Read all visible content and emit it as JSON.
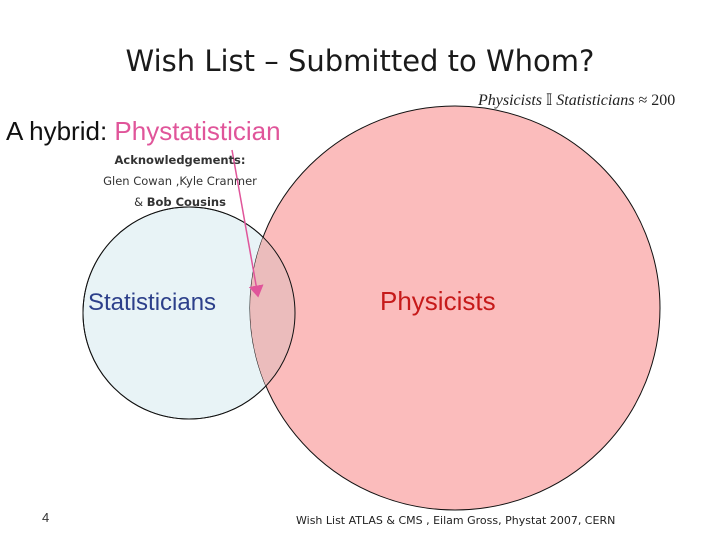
{
  "slide": {
    "title": "Wish List – Submitted to Whom?",
    "ratio": {
      "left": "Physicists",
      "symbol": "𝕀",
      "right": "Statisticians",
      "approx": "≈ 200"
    },
    "hybrid_prefix": "A hybrid:",
    "hybrid_term": "Phystatistician",
    "acknowledgements": {
      "heading": "Acknowledgements:",
      "names_line": "Glen Cowan ,Kyle Cranmer",
      "last_prefix": "& ",
      "last_name": "Bob Cousins"
    },
    "venn": {
      "left_set": "Statisticians",
      "right_set": "Physicists",
      "colors": {
        "statisticians_fill": "#e8f3f6",
        "physicists_fill": "#fbbcbc",
        "overlap_fill": "#ebbcbc",
        "arrow": "#e0559a",
        "stroke": "#111111"
      }
    },
    "page_number": "4",
    "footer": "Wish List ATLAS & CMS , Eilam Gross, Phystat 2007, CERN"
  }
}
